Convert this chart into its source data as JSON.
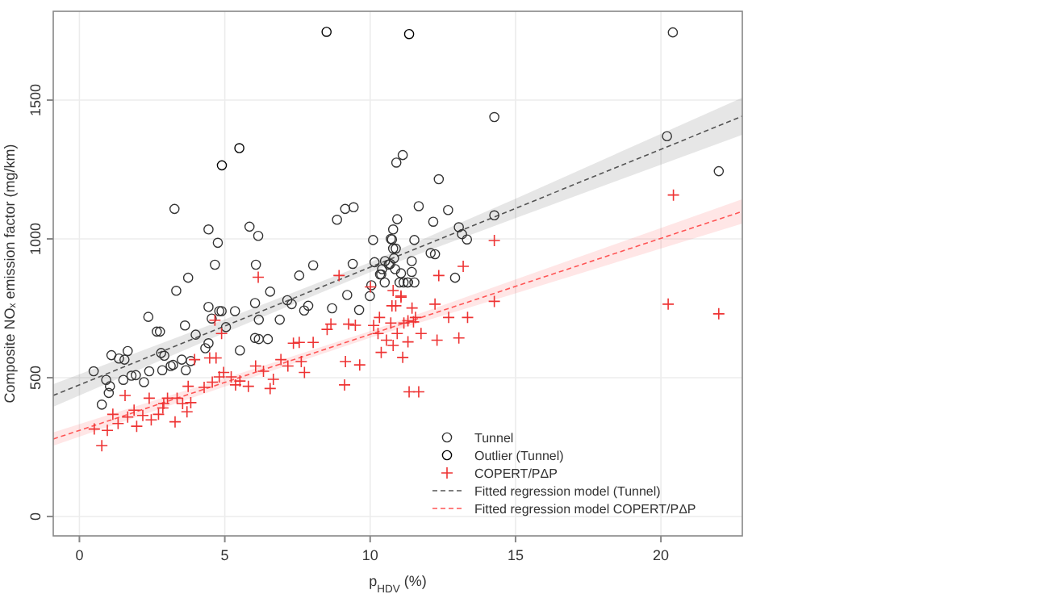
{
  "chart_data": {
    "type": "scatter",
    "xlabel": "p$_{HDV}$ (%)",
    "ylabel": "Composite NOₓ emission factor (mg/km)",
    "xlim": [
      -0.9,
      22.8
    ],
    "ylim": [
      -70,
      1820
    ],
    "xticks": [
      0,
      5,
      10,
      15,
      20
    ],
    "yticks": [
      0,
      500,
      1000,
      1500
    ],
    "grid": true,
    "legend": "bottom right",
    "series": [
      {
        "name": "Tunnel",
        "marker": "circle",
        "color": "#333333",
        "x": [
          0.49,
          0.77,
          0.92,
          1.01,
          1.05,
          1.1,
          1.36,
          1.51,
          1.55,
          1.66,
          1.79,
          1.94,
          2.22,
          2.37,
          2.4,
          2.66,
          2.77,
          2.81,
          2.85,
          2.92,
          3.14,
          3.22,
          3.27,
          3.33,
          3.52,
          3.66,
          3.63,
          3.74,
          3.83,
          4.0,
          4.33,
          4.44,
          4.44,
          4.44,
          4.55,
          4.66,
          4.76,
          4.81,
          4.89,
          5.04,
          5.35,
          5.52,
          5.85,
          6.15,
          6.07,
          6.04,
          6.04,
          6.17,
          6.17,
          6.48,
          6.56,
          6.89,
          7.15,
          7.3,
          7.56,
          7.73,
          7.87,
          8.04,
          8.69,
          8.86,
          9.14,
          9.43,
          9.21,
          9.62,
          9.4,
          9.99,
          10.04,
          10.1,
          10.15,
          10.34,
          10.41,
          10.5,
          10.64,
          10.71,
          10.79,
          10.9,
          11.12,
          10.93,
          10.79,
          11.06,
          11.15,
          11.29,
          11.43,
          11.43,
          11.52,
          11.52,
          11.67,
          10.82,
          10.38,
          10.51,
          10.69,
          10.75,
          10.88,
          10.86,
          11.01,
          11.3,
          12.08,
          12.23,
          12.17,
          12.36,
          12.68,
          12.92,
          13.05,
          13.16,
          13.33,
          14.27,
          14.27,
          20.21,
          20.41,
          21.99
        ],
        "values": [
          523,
          403,
          492,
          445,
          469,
          581,
          569,
          492,
          565,
          596,
          507,
          509,
          484,
          719,
          523,
          666,
          666,
          589,
          527,
          579,
          542,
          546,
          1108,
          813,
          565,
          527,
          688,
          860,
          560,
          655,
          606,
          624,
          755,
          1034,
          713,
          907,
          986,
          740,
          740,
          682,
          740,
          598,
          1044,
          1011,
          907,
          769,
          643,
          639,
          709,
          639,
          810,
          709,
          779,
          765,
          868,
          742,
          759,
          905,
          750,
          1069,
          1108,
          1114,
          798,
          744,
          910,
          794,
          833,
          996,
          916,
          872,
          891,
          843,
          907,
          1000,
          1034,
          1275,
          1302,
          1071,
          965,
          876,
          843,
          843,
          881,
          920,
          843,
          996,
          1118,
          930,
          872,
          920,
          910,
          998,
          965,
          891,
          843,
          843,
          949,
          945,
          1062,
          1215,
          1104,
          860,
          1042,
          1017,
          998,
          1439,
          1085,
          1370,
          1744,
          1244
        ]
      },
      {
        "name": "Outlier (Tunnel)",
        "marker": "circle",
        "color": "#000000",
        "x": [
          8.5,
          11.34,
          4.9,
          5.5
        ],
        "values": [
          1746,
          1738,
          1265,
          1327
        ]
      },
      {
        "name": "COPERT/PΔP",
        "marker": "cross",
        "color": "#ee3333",
        "x": [
          0.77,
          0.51,
          0.96,
          1.15,
          1.33,
          1.57,
          1.66,
          1.88,
          1.97,
          2.18,
          2.4,
          2.47,
          2.72,
          2.87,
          2.9,
          3.03,
          3.29,
          3.36,
          3.55,
          3.7,
          3.74,
          3.83,
          3.96,
          4.29,
          4.48,
          4.57,
          4.7,
          4.81,
          4.66,
          4.89,
          4.96,
          5.22,
          5.37,
          5.52,
          5.81,
          6.15,
          6.06,
          6.33,
          6.56,
          6.67,
          6.93,
          7.17,
          7.36,
          7.56,
          7.63,
          7.74,
          8.04,
          8.52,
          8.65,
          9.15,
          9.12,
          9.26,
          9.49,
          9.64,
          10.01,
          10.12,
          10.27,
          10.38,
          10.56,
          10.75,
          10.79,
          10.93,
          11.06,
          11.12,
          11.3,
          11.56,
          11.67,
          8.93,
          10.71,
          10.32,
          10.79,
          10.88,
          11.06,
          11.16,
          11.3,
          11.44,
          11.49,
          11.75,
          12.23,
          12.3,
          12.36,
          12.7,
          13.05,
          13.2,
          13.35,
          14.27,
          14.27,
          11.34,
          20.25,
          20.43,
          21.99
        ],
        "values": [
          255,
          315,
          310,
          368,
          335,
          436,
          358,
          383,
          325,
          364,
          426,
          348,
          368,
          391,
          407,
          426,
          341,
          426,
          407,
          377,
          469,
          410,
          565,
          465,
          571,
          484,
          571,
          503,
          707,
          659,
          519,
          503,
          474,
          488,
          469,
          862,
          542,
          523,
          461,
          494,
          565,
          542,
          624,
          627,
          558,
          519,
          627,
          674,
          693,
          558,
          474,
          693,
          689,
          546,
          827,
          688,
          659,
          591,
          635,
          759,
          616,
          659,
          790,
          573,
          705,
          717,
          449,
          868,
          697,
          717,
          814,
          759,
          794,
          697,
          629,
          751,
          701,
          659,
          765,
          635,
          868,
          717,
          643,
          901,
          717,
          994,
          775,
          449,
          765,
          1158,
          730
        ]
      },
      {
        "name": "Fitted regression model (Tunnel)",
        "type": "line",
        "line_style": "dashed",
        "marker": "none",
        "color": "#555555",
        "x": [
          -0.9,
          5,
          10,
          15,
          22.8
        ],
        "values": [
          436,
          686,
          898,
          1110,
          1442
        ],
        "lower": [
          395,
          662,
          880,
          1075,
          1375
        ],
        "upper": [
          477,
          710,
          916,
          1145,
          1509
        ]
      },
      {
        "name": "Fitted regression model COPERT/PΔP",
        "type": "line",
        "line_style": "dashed",
        "marker": "none",
        "color": "#ff5555",
        "x": [
          -0.9,
          5,
          10,
          15,
          22.8
        ],
        "values": [
          279,
          483,
          656,
          829,
          1099
        ],
        "lower": [
          255,
          468,
          644,
          804,
          1055
        ],
        "upper": [
          303,
          498,
          668,
          854,
          1143
        ]
      }
    ]
  }
}
